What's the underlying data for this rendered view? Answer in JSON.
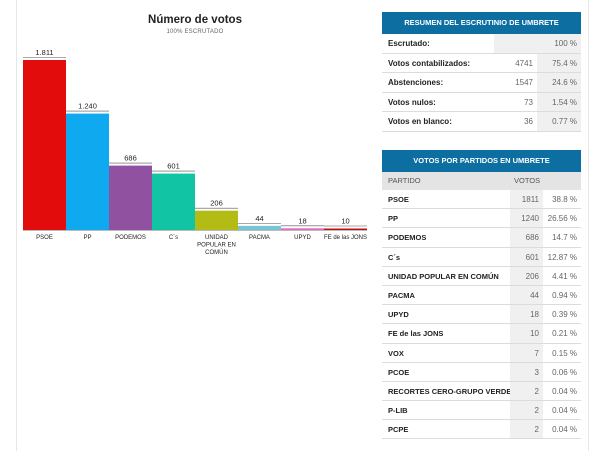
{
  "chart_data": {
    "type": "bar",
    "title": "Número de votos",
    "subtitle": "100% ESCRUTADO",
    "categories": [
      "PSOE",
      "PP",
      "PODEMOS",
      "C´s",
      "UNIDAD POPULAR EN COMÚN",
      "PACMA",
      "UPYD",
      "FE de las JONS"
    ],
    "category_lines": [
      [
        "PSOE"
      ],
      [
        "PP"
      ],
      [
        "PODEMOS"
      ],
      [
        "C´s"
      ],
      [
        "UNIDAD",
        "POPULAR EN",
        "COMÚN"
      ],
      [
        "PACMA"
      ],
      [
        "UPYD"
      ],
      [
        "FE de las JONS"
      ]
    ],
    "values": [
      1811,
      1240,
      686,
      601,
      206,
      44,
      18,
      10
    ],
    "value_labels": [
      "1.811",
      "1.240",
      "686",
      "601",
      "206",
      "44",
      "18",
      "10"
    ],
    "colors": [
      "#e30c0c",
      "#0fa9ef",
      "#8f51a0",
      "#10c4a4",
      "#b3bc14",
      "#78c3d4",
      "#e46ac0",
      "#c21010"
    ],
    "ylim": [
      0,
      1811
    ],
    "xlabel": "",
    "ylabel": "",
    "grid": false,
    "legend": "none"
  },
  "summary": {
    "title": "RESUMEN DEL ESCRUTINIO DE UMBRETE",
    "rows": [
      {
        "label": "Escrutado:",
        "votes": "",
        "pct": "100 %"
      },
      {
        "label": "Votos contabilizados:",
        "votes": "4741",
        "pct": "75.4 %"
      },
      {
        "label": "Abstenciones:",
        "votes": "1547",
        "pct": "24.6 %"
      },
      {
        "label": "Votos nulos:",
        "votes": "73",
        "pct": "1.54 %"
      },
      {
        "label": "Votos en blanco:",
        "votes": "36",
        "pct": "0.77 %"
      }
    ]
  },
  "parties": {
    "title": "VOTOS POR PARTIDOS EN UMBRETE",
    "col_party": "PARTIDO",
    "col_votes": "VOTOS",
    "rows": [
      {
        "name": "PSOE",
        "votes": "1811",
        "pct": "38.8 %"
      },
      {
        "name": "PP",
        "votes": "1240",
        "pct": "26.56 %"
      },
      {
        "name": "PODEMOS",
        "votes": "686",
        "pct": "14.7 %"
      },
      {
        "name": "C´s",
        "votes": "601",
        "pct": "12.87 %"
      },
      {
        "name": "UNIDAD POPULAR EN COMÚN",
        "votes": "206",
        "pct": "4.41 %"
      },
      {
        "name": "PACMA",
        "votes": "44",
        "pct": "0.94 %"
      },
      {
        "name": "UPYD",
        "votes": "18",
        "pct": "0.39 %"
      },
      {
        "name": "FE de las JONS",
        "votes": "10",
        "pct": "0.21 %"
      },
      {
        "name": "VOX",
        "votes": "7",
        "pct": "0.15 %"
      },
      {
        "name": "PCOE",
        "votes": "3",
        "pct": "0.06 %"
      },
      {
        "name": "RECORTES CERO-GRUPO VERDE",
        "votes": "2",
        "pct": "0.04 %"
      },
      {
        "name": "P-LIB",
        "votes": "2",
        "pct": "0.04 %"
      },
      {
        "name": "PCPE",
        "votes": "2",
        "pct": "0.04 %"
      }
    ]
  }
}
